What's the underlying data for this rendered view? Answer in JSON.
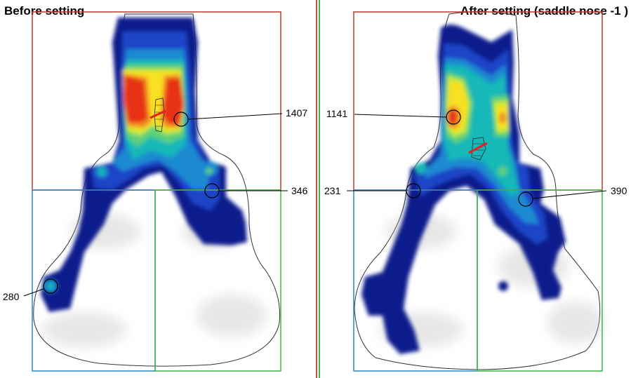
{
  "panels": {
    "left": {
      "title": "Before setting",
      "points": [
        {
          "value": "1407"
        },
        {
          "value": "346"
        },
        {
          "value": "280"
        }
      ]
    },
    "right": {
      "title": "After setting (saddle nose -1 )",
      "points": [
        {
          "value": "1141"
        },
        {
          "value": "231"
        },
        {
          "value": "390"
        }
      ]
    }
  },
  "colors": {
    "zone_front": "#c0392b",
    "zone_rear_left": "#2e86c1",
    "zone_rear_right": "#3cb54a",
    "divider_left": "#d04a4a",
    "divider_right": "#3cb54a",
    "pressure_scale": [
      "#0a1a8c",
      "#1a44c8",
      "#1a8ad0",
      "#14b8b8",
      "#5ad07a",
      "#c8e838",
      "#f8e020",
      "#f09020",
      "#e83018"
    ]
  }
}
